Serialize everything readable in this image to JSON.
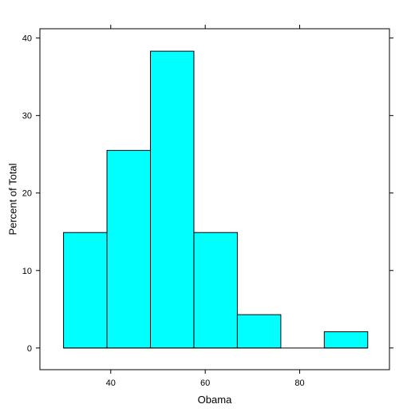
{
  "chart_data": {
    "type": "bar",
    "subtype": "histogram",
    "xlabel": "Obama",
    "ylabel": "Percent of Total",
    "xlim": [
      25,
      99
    ],
    "ylim": [
      -2.8,
      41.2
    ],
    "x_ticks": [
      40,
      60,
      80
    ],
    "y_ticks": [
      0,
      10,
      20,
      30,
      40
    ],
    "bins": [
      {
        "start": 30.0,
        "end": 39.2,
        "value": 14.9
      },
      {
        "start": 39.2,
        "end": 48.4,
        "value": 25.5
      },
      {
        "start": 48.4,
        "end": 57.6,
        "value": 38.3
      },
      {
        "start": 57.6,
        "end": 66.8,
        "value": 14.9
      },
      {
        "start": 66.8,
        "end": 76.0,
        "value": 4.3
      },
      {
        "start": 76.0,
        "end": 85.2,
        "value": 0
      },
      {
        "start": 85.2,
        "end": 94.4,
        "value": 2.1
      }
    ],
    "grid": false,
    "legend": "none",
    "colors": {
      "bar_fill": "#00ffff",
      "bar_stroke": "#000000",
      "axis": "#000000",
      "background": "#ffffff"
    }
  }
}
